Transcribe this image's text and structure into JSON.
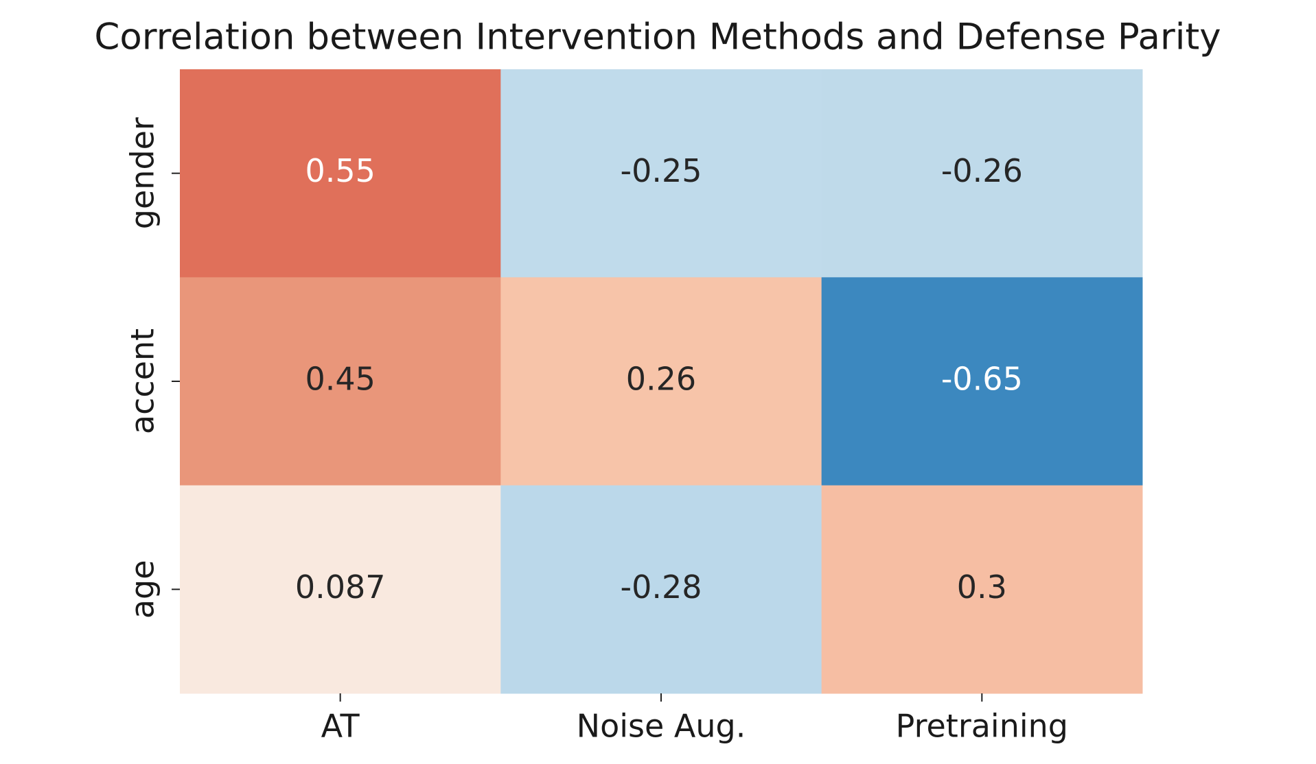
{
  "chart_data": {
    "type": "heatmap",
    "title": "Correlation between Intervention Methods and Defense Parity",
    "columns": [
      "AT",
      "Noise Aug.",
      "Pretraining"
    ],
    "rows": [
      "gender",
      "accent",
      "age"
    ],
    "values": [
      [
        0.55,
        -0.25,
        -0.26
      ],
      [
        0.45,
        0.26,
        -0.65
      ],
      [
        0.087,
        -0.28,
        0.3
      ]
    ],
    "colors": [
      [
        "#e0705a",
        "#c0dbeb",
        "#bfdaea"
      ],
      [
        "#e9967a",
        "#f7c4a9",
        "#3c88bf"
      ],
      [
        "#f9e9df",
        "#bbd8ea",
        "#f6bea3"
      ]
    ]
  }
}
